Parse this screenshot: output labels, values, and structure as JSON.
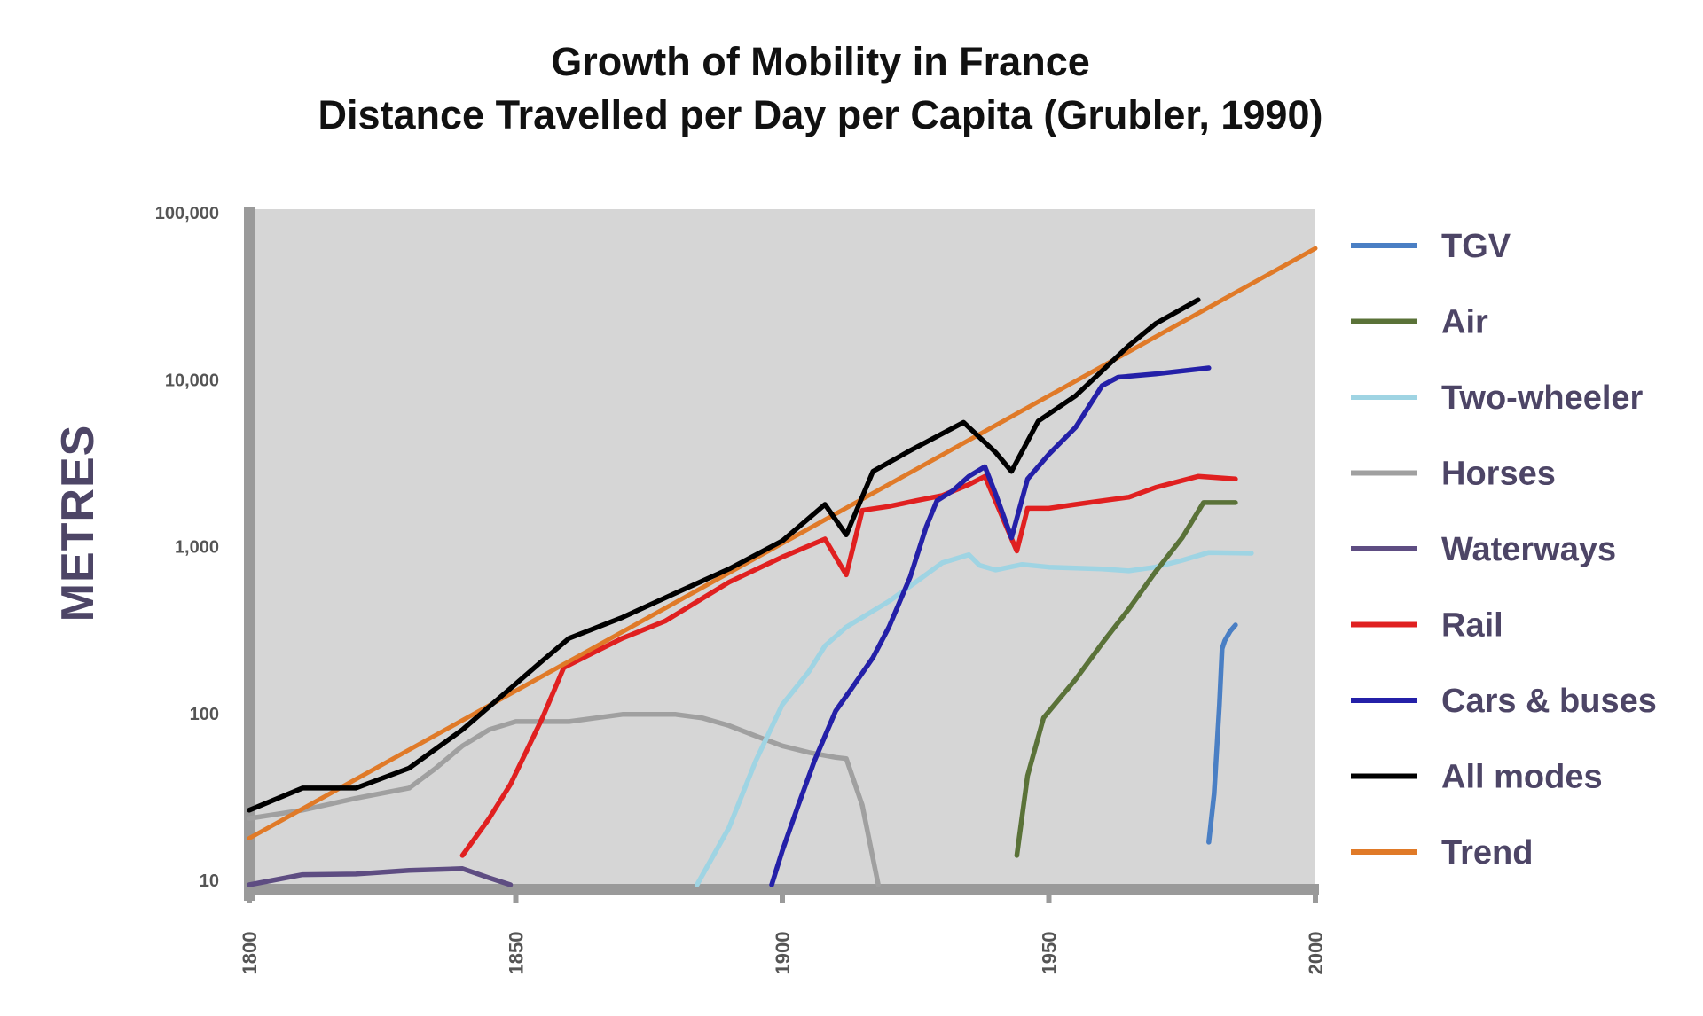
{
  "chart_data": {
    "type": "line",
    "title": "Growth of Mobility in France",
    "subtitle": "Distance Travelled per Day per Capita (Grubler, 1990)",
    "xlabel": "",
    "ylabel": "METRES",
    "y_scale": "log",
    "xlim": [
      1800,
      2000
    ],
    "ylim": [
      10,
      100000
    ],
    "x_ticks": [
      "1800",
      "1850",
      "1900",
      "1950",
      "2000"
    ],
    "y_ticks": [
      "10",
      "100",
      "1,000",
      "10,000",
      "100,000"
    ],
    "grid": false,
    "legend_position": "right",
    "series": [
      {
        "name": "TGV",
        "color": "#4a7fc4",
        "points": [
          [
            1980,
            18
          ],
          [
            1981,
            35
          ],
          [
            1982,
            120
          ],
          [
            1982.5,
            260
          ],
          [
            1983,
            290
          ],
          [
            1984,
            330
          ],
          [
            1985,
            360
          ]
        ]
      },
      {
        "name": "Air",
        "color": "#5a7238",
        "points": [
          [
            1944,
            15
          ],
          [
            1946,
            45
          ],
          [
            1949,
            100
          ],
          [
            1955,
            170
          ],
          [
            1960,
            280
          ],
          [
            1965,
            450
          ],
          [
            1970,
            750
          ],
          [
            1975,
            1200
          ],
          [
            1979,
            1950
          ],
          [
            1985,
            1950
          ]
        ]
      },
      {
        "name": "Two-wheeler",
        "color": "#9fd4e3",
        "points": [
          [
            1884,
            10
          ],
          [
            1890,
            22
          ],
          [
            1895,
            55
          ],
          [
            1900,
            120
          ],
          [
            1905,
            190
          ],
          [
            1908,
            270
          ],
          [
            1912,
            350
          ],
          [
            1920,
            500
          ],
          [
            1925,
            650
          ],
          [
            1930,
            850
          ],
          [
            1935,
            950
          ],
          [
            1937,
            820
          ],
          [
            1940,
            770
          ],
          [
            1945,
            830
          ],
          [
            1950,
            800
          ],
          [
            1955,
            790
          ],
          [
            1960,
            780
          ],
          [
            1965,
            760
          ],
          [
            1970,
            800
          ],
          [
            1975,
            880
          ],
          [
            1980,
            980
          ],
          [
            1988,
            970
          ]
        ]
      },
      {
        "name": "Horses",
        "color": "#a0a0a0",
        "points": [
          [
            1800,
            25
          ],
          [
            1810,
            28
          ],
          [
            1820,
            33
          ],
          [
            1830,
            38
          ],
          [
            1835,
            50
          ],
          [
            1840,
            68
          ],
          [
            1845,
            85
          ],
          [
            1850,
            95
          ],
          [
            1855,
            95
          ],
          [
            1860,
            95
          ],
          [
            1865,
            100
          ],
          [
            1870,
            105
          ],
          [
            1875,
            105
          ],
          [
            1880,
            105
          ],
          [
            1885,
            100
          ],
          [
            1890,
            90
          ],
          [
            1895,
            78
          ],
          [
            1900,
            68
          ],
          [
            1905,
            62
          ],
          [
            1910,
            58
          ],
          [
            1912,
            57
          ],
          [
            1915,
            30
          ],
          [
            1918,
            10
          ]
        ]
      },
      {
        "name": "Waterways",
        "color": "#5e4d82",
        "points": [
          [
            1800,
            10
          ],
          [
            1810,
            11.5
          ],
          [
            1820,
            11.6
          ],
          [
            1830,
            12.2
          ],
          [
            1840,
            12.5
          ],
          [
            1845,
            11
          ],
          [
            1849,
            10
          ]
        ]
      },
      {
        "name": "Rail",
        "color": "#e02020",
        "points": [
          [
            1840,
            15
          ],
          [
            1845,
            25
          ],
          [
            1849,
            40
          ],
          [
            1855,
            100
          ],
          [
            1859,
            200
          ],
          [
            1865,
            250
          ],
          [
            1870,
            300
          ],
          [
            1878,
            380
          ],
          [
            1885,
            520
          ],
          [
            1890,
            650
          ],
          [
            1900,
            920
          ],
          [
            1908,
            1180
          ],
          [
            1912,
            720
          ],
          [
            1915,
            1750
          ],
          [
            1920,
            1850
          ],
          [
            1925,
            2000
          ],
          [
            1930,
            2150
          ],
          [
            1935,
            2500
          ],
          [
            1938,
            2800
          ],
          [
            1944,
            1000
          ],
          [
            1946,
            1800
          ],
          [
            1950,
            1800
          ],
          [
            1955,
            1900
          ],
          [
            1960,
            2000
          ],
          [
            1965,
            2100
          ],
          [
            1970,
            2400
          ],
          [
            1978,
            2800
          ],
          [
            1985,
            2700
          ]
        ]
      },
      {
        "name": "Cars & buses",
        "color": "#2420a8",
        "points": [
          [
            1898,
            10
          ],
          [
            1900,
            16
          ],
          [
            1903,
            30
          ],
          [
            1906,
            55
          ],
          [
            1910,
            110
          ],
          [
            1913,
            150
          ],
          [
            1917,
            230
          ],
          [
            1920,
            350
          ],
          [
            1924,
            700
          ],
          [
            1927,
            1400
          ],
          [
            1929,
            2000
          ],
          [
            1932,
            2300
          ],
          [
            1935,
            2800
          ],
          [
            1938,
            3200
          ],
          [
            1940,
            2200
          ],
          [
            1943,
            1200
          ],
          [
            1946,
            2700
          ],
          [
            1950,
            3800
          ],
          [
            1955,
            5500
          ],
          [
            1960,
            9800
          ],
          [
            1963,
            11000
          ],
          [
            1970,
            11500
          ],
          [
            1980,
            12500
          ]
        ]
      },
      {
        "name": "All modes",
        "color": "#000000",
        "points": [
          [
            1800,
            28
          ],
          [
            1810,
            38
          ],
          [
            1820,
            38
          ],
          [
            1830,
            50
          ],
          [
            1840,
            85
          ],
          [
            1850,
            160
          ],
          [
            1855,
            220
          ],
          [
            1860,
            300
          ],
          [
            1870,
            400
          ],
          [
            1880,
            560
          ],
          [
            1890,
            780
          ],
          [
            1900,
            1150
          ],
          [
            1908,
            1900
          ],
          [
            1912,
            1250
          ],
          [
            1917,
            3000
          ],
          [
            1924,
            4000
          ],
          [
            1934,
            5900
          ],
          [
            1940,
            3900
          ],
          [
            1943,
            3000
          ],
          [
            1948,
            6000
          ],
          [
            1955,
            8500
          ],
          [
            1960,
            12000
          ],
          [
            1965,
            17000
          ],
          [
            1970,
            23000
          ],
          [
            1978,
            32000
          ]
        ]
      },
      {
        "name": "Trend",
        "color": "#e07a28",
        "points": [
          [
            1800,
            19
          ],
          [
            2000,
            65000
          ]
        ]
      }
    ]
  }
}
